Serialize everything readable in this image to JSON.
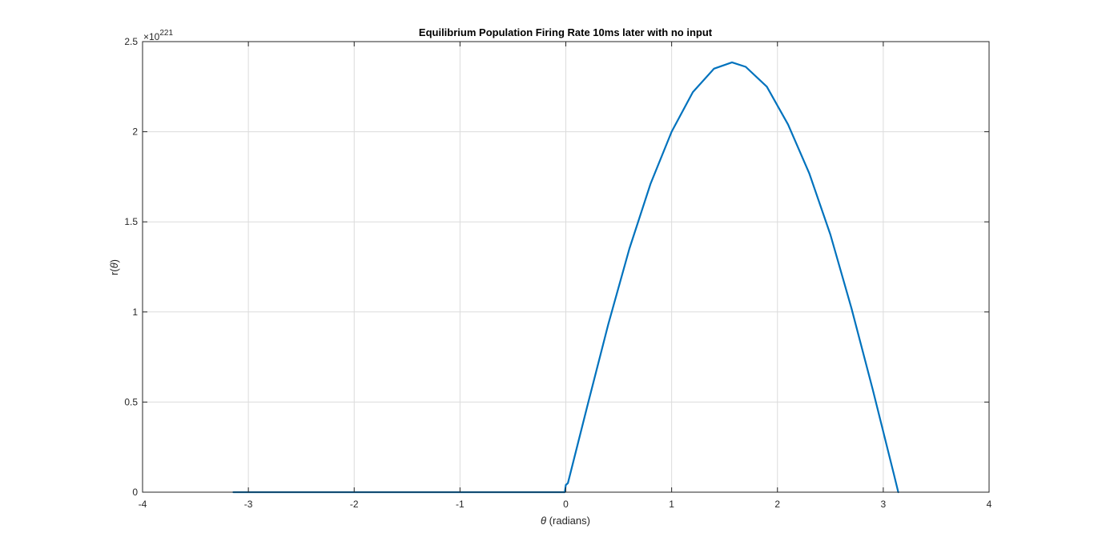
{
  "chart_data": {
    "type": "line",
    "title": "Equilibrium Population Firing Rate 10ms later with no input",
    "xlabel_symbol": "θ",
    "xlabel_text": " (radians)",
    "ylabel_prefix": "r(",
    "ylabel_symbol": "θ",
    "ylabel_suffix": ")",
    "y_exponent_prefix": "×10",
    "y_exponent_power": "221",
    "xlim": [
      -4,
      4
    ],
    "ylim": [
      0,
      2.5
    ],
    "xticks": [
      -4,
      -3,
      -2,
      -1,
      0,
      1,
      2,
      3,
      4
    ],
    "yticks": [
      0,
      0.5,
      1,
      1.5,
      2,
      2.5
    ],
    "xtick_labels": [
      "-4",
      "-3",
      "-2",
      "-1",
      "0",
      "1",
      "2",
      "3",
      "4"
    ],
    "ytick_labels": [
      "0",
      "0.5",
      "1",
      "1.5",
      "2",
      "2.5"
    ],
    "grid": true,
    "series": [
      {
        "color": "#0072bd",
        "x": [
          -3.1416,
          -2.5,
          -2.0,
          -1.5,
          -1.0,
          -0.5,
          -0.01,
          0.0,
          0.02,
          0.2,
          0.4,
          0.6,
          0.8,
          1.0,
          1.2,
          1.4,
          1.5708,
          1.7,
          1.9,
          2.1,
          2.3,
          2.5,
          2.7,
          2.9,
          3.1,
          3.1416
        ],
        "y": [
          0,
          0,
          0,
          0,
          0,
          0,
          0,
          0.04,
          0.05,
          0.47,
          0.93,
          1.35,
          1.71,
          2.0,
          2.22,
          2.35,
          2.385,
          2.36,
          2.25,
          2.04,
          1.77,
          1.43,
          1.02,
          0.57,
          0.1,
          0.0
        ]
      }
    ]
  }
}
